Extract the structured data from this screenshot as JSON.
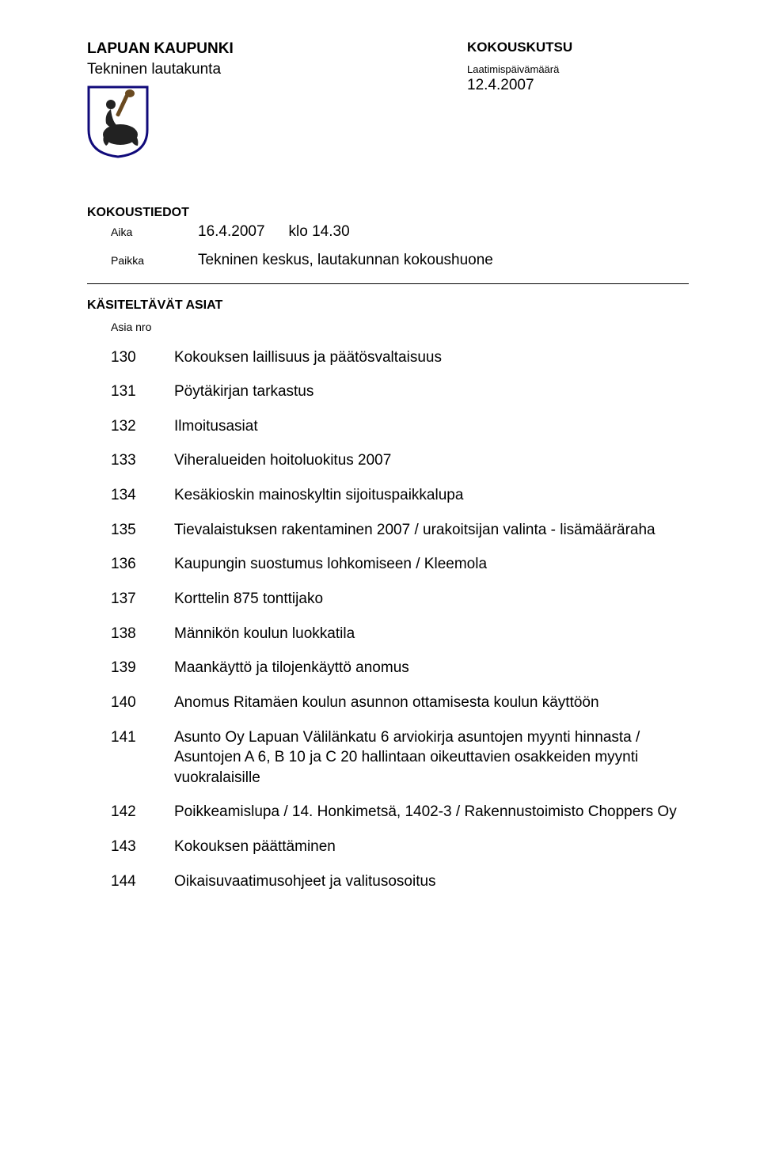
{
  "colors": {
    "text": "#000000",
    "background": "#ffffff",
    "rule": "#000000",
    "crest_border": "#100a7a",
    "crest_fill": "#ffffff",
    "crest_figure": "#222222",
    "crest_club": "#6a4a20"
  },
  "typography": {
    "body_family": "Arial, Helvetica, sans-serif",
    "title_size_pt": 14,
    "body_size_pt": 14,
    "small_size_pt": 10
  },
  "header": {
    "org": "LAPUAN KAUPUNKI",
    "board": "Tekninen lautakunta",
    "kutsu": "KOKOUSKUTSU",
    "laatimis_label": "Laatimispäivämäärä",
    "laatimis_date": "12.4.2007"
  },
  "meeting": {
    "section": "KOKOUSTIEDOT",
    "aika_label": "Aika",
    "aika_value": "16.4.2007",
    "aika_time": "klo 14.30",
    "paikka_label": "Paikka",
    "paikka_value": "Tekninen keskus, lautakunnan kokoushuone"
  },
  "agenda": {
    "section": "KÄSITELTÄVÄT ASIAT",
    "asia_nro_label": "Asia nro",
    "items": [
      {
        "num": "130",
        "text": "Kokouksen laillisuus ja päätösvaltaisuus"
      },
      {
        "num": "131",
        "text": "Pöytäkirjan tarkastus"
      },
      {
        "num": "132",
        "text": "Ilmoitusasiat"
      },
      {
        "num": "133",
        "text": "Viheralueiden hoitoluokitus 2007"
      },
      {
        "num": "134",
        "text": "Kesäkioskin mainoskyltin sijoituspaikkalupa"
      },
      {
        "num": "135",
        "text": "Tievalaistuksen rakentaminen 2007 / urakoitsijan valinta - lisämääräraha"
      },
      {
        "num": "136",
        "text": "Kaupungin suostumus lohkomiseen / Kleemola"
      },
      {
        "num": "137",
        "text": "Korttelin 875 tonttijako"
      },
      {
        "num": "138",
        "text": "Männikön koulun luokkatila"
      },
      {
        "num": "139",
        "text": "Maankäyttö ja tilojenkäyttö anomus"
      },
      {
        "num": "140",
        "text": "Anomus Ritamäen koulun asunnon ottamisesta koulun käyttöön"
      },
      {
        "num": "141",
        "text": "Asunto Oy Lapuan Välilänkatu 6  arviokirja asuntojen myynti hinnasta / Asuntojen A 6, B 10 ja C 20 hallintaan oikeuttavien osakkeiden myynti vuokralaisille"
      },
      {
        "num": "142",
        "text": "Poikkeamislupa / 14. Honkimetsä, 1402-3 / Rakennustoimisto Choppers Oy"
      },
      {
        "num": "143",
        "text": "Kokouksen päättäminen"
      },
      {
        "num": "144",
        "text": "Oikaisuvaatimusohjeet ja valitusosoitus"
      }
    ]
  }
}
